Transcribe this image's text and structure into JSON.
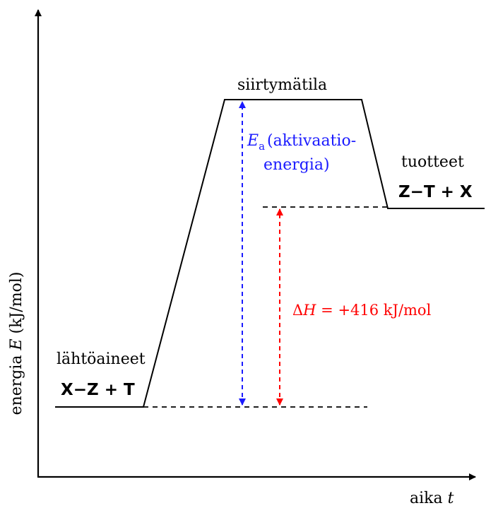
{
  "axes": {
    "y_label_prefix": "energia ",
    "y_label_var": "E",
    "y_label_unit": " (kJ/mol)",
    "x_label_prefix": "aika ",
    "x_label_var": "t"
  },
  "states": {
    "reactants": {
      "name": "lähtöaineet",
      "formula": "X−Z + T"
    },
    "transition": {
      "name": "siirtymätila"
    },
    "products": {
      "name": "tuotteet",
      "formula": "Z−T + X"
    }
  },
  "activation_energy": {
    "symbol": "E",
    "subscript": "a",
    "label_line1": "(aktivaatio-",
    "label_line2": "energia)"
  },
  "enthalpy": {
    "symbol_delta": "Δ",
    "symbol_var": "H",
    "value_text": " = +416 kJ/mol"
  },
  "colors": {
    "line": "#000000",
    "activation": "#1a1aff",
    "enthalpy": "#ff0000"
  }
}
